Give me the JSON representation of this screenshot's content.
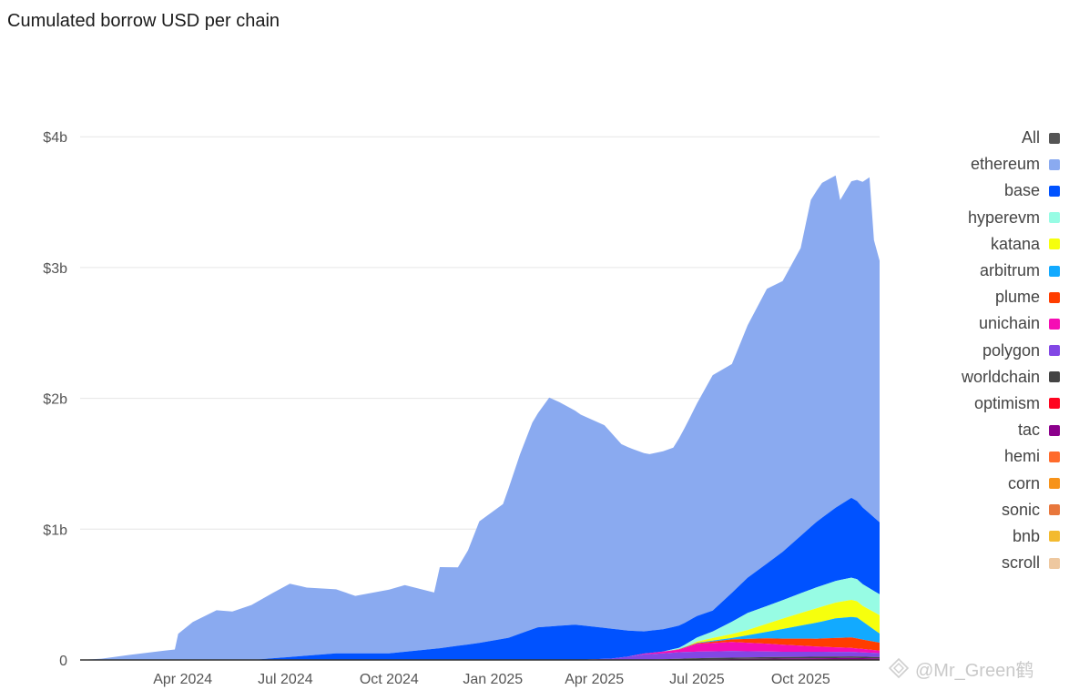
{
  "chart_data": {
    "type": "area",
    "title": "Cumulated borrow USD per chain",
    "xlabel": "",
    "ylabel": "",
    "ylim": [
      0,
      4.6
    ],
    "y_unit": "USD billions",
    "y_ticks": [
      {
        "value": 0,
        "label": "0"
      },
      {
        "value": 1,
        "label": "$1b"
      },
      {
        "value": 2,
        "label": "$2b"
      },
      {
        "value": 3,
        "label": "$3b"
      },
      {
        "value": 4,
        "label": "$4b"
      }
    ],
    "x_range": [
      "2024-01-01",
      "2025-12-10"
    ],
    "x_ticks": [
      {
        "date": "2024-04-01",
        "label": "Apr 2024"
      },
      {
        "date": "2024-07-01",
        "label": "Jul 2024"
      },
      {
        "date": "2024-10-01",
        "label": "Oct 2024"
      },
      {
        "date": "2025-01-01",
        "label": "Jan 2025"
      },
      {
        "date": "2025-04-01",
        "label": "Apr 2025"
      },
      {
        "date": "2025-07-01",
        "label": "Jul 2025"
      },
      {
        "date": "2025-10-01",
        "label": "Oct 2025"
      }
    ],
    "legend": [
      {
        "name": "All",
        "color": "#555555"
      },
      {
        "name": "ethereum",
        "color": "#8aaaf0"
      },
      {
        "name": "base",
        "color": "#0052ff"
      },
      {
        "name": "hyperevm",
        "color": "#97fce4"
      },
      {
        "name": "katana",
        "color": "#f6ff0d"
      },
      {
        "name": "arbitrum",
        "color": "#12aaff"
      },
      {
        "name": "plume",
        "color": "#ff3d00"
      },
      {
        "name": "unichain",
        "color": "#f50db4"
      },
      {
        "name": "polygon",
        "color": "#8247e5"
      },
      {
        "name": "worldchain",
        "color": "#444444"
      },
      {
        "name": "optimism",
        "color": "#ff0420"
      },
      {
        "name": "tac",
        "color": "#8b008b"
      },
      {
        "name": "hemi",
        "color": "#ff6b2c"
      },
      {
        "name": "corn",
        "color": "#f7931a"
      },
      {
        "name": "sonic",
        "color": "#e8773c"
      },
      {
        "name": "bnb",
        "color": "#f3ba2f"
      },
      {
        "name": "scroll",
        "color": "#eec8a0"
      }
    ],
    "series": [
      {
        "name": "tac",
        "color": "#8b008b",
        "points": [
          [
            "2025-06-01",
            0
          ],
          [
            "2025-09-01",
            0.01
          ],
          [
            "2025-11-15",
            0.015
          ],
          [
            "2025-12-10",
            0.012
          ]
        ]
      },
      {
        "name": "worldchain",
        "color": "#444444",
        "points": [
          [
            "2025-05-01",
            0
          ],
          [
            "2025-07-01",
            0.01
          ],
          [
            "2025-09-15",
            0.012
          ],
          [
            "2025-11-15",
            0.012
          ],
          [
            "2025-12-10",
            0.01
          ]
        ]
      },
      {
        "name": "polygon",
        "color": "#8247e5",
        "points": [
          [
            "2025-03-15",
            0
          ],
          [
            "2025-04-15",
            0.01
          ],
          [
            "2025-05-15",
            0.04
          ],
          [
            "2025-06-15",
            0.05
          ],
          [
            "2025-08-01",
            0.05
          ],
          [
            "2025-09-15",
            0.04
          ],
          [
            "2025-11-15",
            0.035
          ],
          [
            "2025-12-10",
            0.03
          ]
        ]
      },
      {
        "name": "unichain",
        "color": "#f50db4",
        "points": [
          [
            "2025-05-01",
            0
          ],
          [
            "2025-06-15",
            0.02
          ],
          [
            "2025-07-01",
            0.06
          ],
          [
            "2025-08-01",
            0.07
          ],
          [
            "2025-09-01",
            0.06
          ],
          [
            "2025-10-15",
            0.04
          ],
          [
            "2025-11-15",
            0.03
          ],
          [
            "2025-12-10",
            0.02
          ]
        ]
      },
      {
        "name": "plume",
        "color": "#ff3d00",
        "points": [
          [
            "2025-06-01",
            0
          ],
          [
            "2025-07-01",
            0.005
          ],
          [
            "2025-08-01",
            0.02
          ],
          [
            "2025-09-01",
            0.04
          ],
          [
            "2025-10-15",
            0.06
          ],
          [
            "2025-11-15",
            0.08
          ],
          [
            "2025-12-10",
            0.06
          ]
        ]
      },
      {
        "name": "arbitrum",
        "color": "#12aaff",
        "points": [
          [
            "2025-06-01",
            0
          ],
          [
            "2025-07-01",
            0.003
          ],
          [
            "2025-08-01",
            0.01
          ],
          [
            "2025-09-01",
            0.05
          ],
          [
            "2025-10-01",
            0.1
          ],
          [
            "2025-11-01",
            0.15
          ],
          [
            "2025-11-20",
            0.16
          ],
          [
            "2025-12-10",
            0.07
          ]
        ]
      },
      {
        "name": "katana",
        "color": "#f6ff0d",
        "points": [
          [
            "2025-06-20",
            0
          ],
          [
            "2025-07-15",
            0.02
          ],
          [
            "2025-08-15",
            0.04
          ],
          [
            "2025-09-15",
            0.08
          ],
          [
            "2025-10-15",
            0.11
          ],
          [
            "2025-11-15",
            0.13
          ],
          [
            "2025-11-25",
            0.12
          ],
          [
            "2025-12-10",
            0.14
          ]
        ]
      },
      {
        "name": "hyperevm",
        "color": "#97fce4",
        "points": [
          [
            "2025-06-01",
            0
          ],
          [
            "2025-06-15",
            0.01
          ],
          [
            "2025-07-15",
            0.05
          ],
          [
            "2025-08-15",
            0.13
          ],
          [
            "2025-09-15",
            0.14
          ],
          [
            "2025-10-15",
            0.16
          ],
          [
            "2025-11-15",
            0.17
          ],
          [
            "2025-12-10",
            0.16
          ]
        ]
      },
      {
        "name": "base",
        "color": "#0052ff",
        "points": [
          [
            "2024-01-01",
            0
          ],
          [
            "2024-06-01",
            0
          ],
          [
            "2024-07-15",
            0.03
          ],
          [
            "2024-08-15",
            0.05
          ],
          [
            "2024-10-01",
            0.05
          ],
          [
            "2024-11-15",
            0.09
          ],
          [
            "2024-12-20",
            0.13
          ],
          [
            "2025-01-15",
            0.17
          ],
          [
            "2025-02-10",
            0.25
          ],
          [
            "2025-03-15",
            0.27
          ],
          [
            "2025-04-15",
            0.23
          ],
          [
            "2025-05-15",
            0.17
          ],
          [
            "2025-06-15",
            0.17
          ],
          [
            "2025-07-15",
            0.16
          ],
          [
            "2025-08-15",
            0.27
          ],
          [
            "2025-09-15",
            0.37
          ],
          [
            "2025-10-15",
            0.5
          ],
          [
            "2025-11-15",
            0.61
          ],
          [
            "2025-12-10",
            0.55
          ]
        ]
      },
      {
        "name": "ethereum",
        "color": "#8aaaf0",
        "points": [
          [
            "2024-01-01",
            0
          ],
          [
            "2024-01-20",
            0.01
          ],
          [
            "2024-02-15",
            0.04
          ],
          [
            "2024-03-15",
            0.07
          ],
          [
            "2024-03-25",
            0.08
          ],
          [
            "2024-03-28",
            0.2
          ],
          [
            "2024-04-10",
            0.29
          ],
          [
            "2024-05-01",
            0.38
          ],
          [
            "2024-05-15",
            0.37
          ],
          [
            "2024-06-01",
            0.42
          ],
          [
            "2024-06-20",
            0.5
          ],
          [
            "2024-07-05",
            0.56
          ],
          [
            "2024-07-20",
            0.52
          ],
          [
            "2024-08-15",
            0.49
          ],
          [
            "2024-09-01",
            0.44
          ],
          [
            "2024-10-15",
            0.51
          ],
          [
            "2024-11-10",
            0.43
          ],
          [
            "2024-11-15",
            0.62
          ],
          [
            "2024-12-01",
            0.6
          ],
          [
            "2024-12-10",
            0.72
          ],
          [
            "2024-12-20",
            0.93
          ],
          [
            "2025-01-10",
            1.03
          ],
          [
            "2025-01-25",
            1.37
          ],
          [
            "2025-02-05",
            1.58
          ],
          [
            "2025-02-20",
            1.75
          ],
          [
            "2025-03-01",
            1.71
          ],
          [
            "2025-03-20",
            1.61
          ],
          [
            "2025-04-10",
            1.55
          ],
          [
            "2025-04-25",
            1.42
          ],
          [
            "2025-05-05",
            1.39
          ],
          [
            "2025-05-20",
            1.35
          ],
          [
            "2025-06-10",
            1.37
          ],
          [
            "2025-06-25",
            1.55
          ],
          [
            "2025-07-15",
            1.8
          ],
          [
            "2025-08-01",
            1.75
          ],
          [
            "2025-08-15",
            1.93
          ],
          [
            "2025-09-01",
            2.1
          ],
          [
            "2025-09-15",
            2.07
          ],
          [
            "2025-10-01",
            2.2
          ],
          [
            "2025-10-10",
            2.5
          ],
          [
            "2025-10-20",
            2.56
          ],
          [
            "2025-11-01",
            2.54
          ],
          [
            "2025-11-05",
            2.33
          ],
          [
            "2025-11-15",
            2.42
          ],
          [
            "2025-11-25",
            2.49
          ],
          [
            "2025-12-01",
            2.57
          ],
          [
            "2025-12-05",
            2.12
          ],
          [
            "2025-12-10",
            2.0
          ]
        ]
      }
    ]
  },
  "watermark": "@Mr_Green鹤"
}
